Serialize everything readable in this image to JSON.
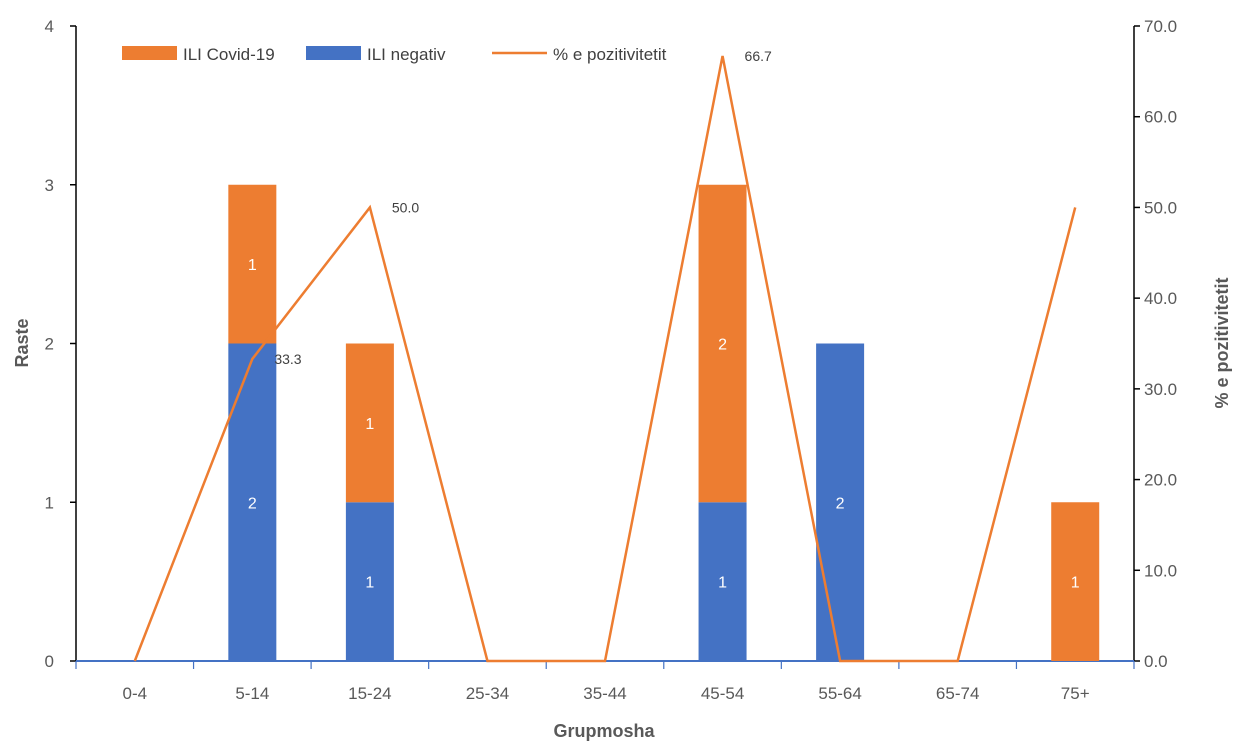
{
  "chart_data": {
    "type": "bar",
    "stacked": true,
    "categories": [
      "0-4",
      "5-14",
      "15-24",
      "25-34",
      "35-44",
      "45-54",
      "55-64",
      "65-74",
      "75+"
    ],
    "series": [
      {
        "name": "ILI negativ",
        "type": "bar",
        "axis": "left",
        "color": "#4472C4",
        "values": [
          0,
          2,
          1,
          0,
          0,
          1,
          2,
          0,
          0
        ]
      },
      {
        "name": "ILI Covid-19",
        "type": "bar",
        "axis": "left",
        "color": "#ED7D31",
        "values": [
          0,
          1,
          1,
          0,
          0,
          2,
          0,
          0,
          1
        ]
      },
      {
        "name": "% e pozitivitetit",
        "type": "line",
        "axis": "right",
        "color": "#ED7D31",
        "values": [
          0,
          33.3,
          50.0,
          0,
          0,
          66.7,
          0,
          0,
          50.0
        ]
      }
    ],
    "bar_data_labels": [
      {
        "series": "ILI negativ",
        "category": "5-14",
        "text": "2"
      },
      {
        "series": "ILI negativ",
        "category": "15-24",
        "text": "1"
      },
      {
        "series": "ILI negativ",
        "category": "45-54",
        "text": "1"
      },
      {
        "series": "ILI negativ",
        "category": "55-64",
        "text": "2"
      },
      {
        "series": "ILI Covid-19",
        "category": "5-14",
        "text": "1"
      },
      {
        "series": "ILI Covid-19",
        "category": "15-24",
        "text": "1"
      },
      {
        "series": "ILI Covid-19",
        "category": "45-54",
        "text": "2"
      },
      {
        "series": "ILI Covid-19",
        "category": "75+",
        "text": "1"
      }
    ],
    "line_data_labels": [
      {
        "category": "5-14",
        "text": "33.3"
      },
      {
        "category": "15-24",
        "text": "50.0"
      },
      {
        "category": "45-54",
        "text": "66.7"
      }
    ],
    "xlabel": "Grupmosha",
    "ylabel": "Raste",
    "y2label": "% e pozitivitetit",
    "ylim": [
      0,
      4
    ],
    "yticks": [
      "0",
      "1",
      "2",
      "3",
      "4"
    ],
    "y2lim": [
      0,
      70
    ],
    "y2ticks": [
      "0.0",
      "10.0",
      "20.0",
      "30.0",
      "40.0",
      "50.0",
      "60.0",
      "70.0"
    ],
    "legend": {
      "position": "top-left",
      "entries": [
        {
          "label": "ILI Covid-19",
          "kind": "bar",
          "color": "#ED7D31"
        },
        {
          "label": "ILI negativ",
          "kind": "bar",
          "color": "#4472C4"
        },
        {
          "label": "% e pozitivitetit",
          "kind": "line",
          "color": "#ED7D31"
        }
      ]
    },
    "grid": false,
    "axis_color": "#000000",
    "baseline_color": "#4472C4"
  }
}
